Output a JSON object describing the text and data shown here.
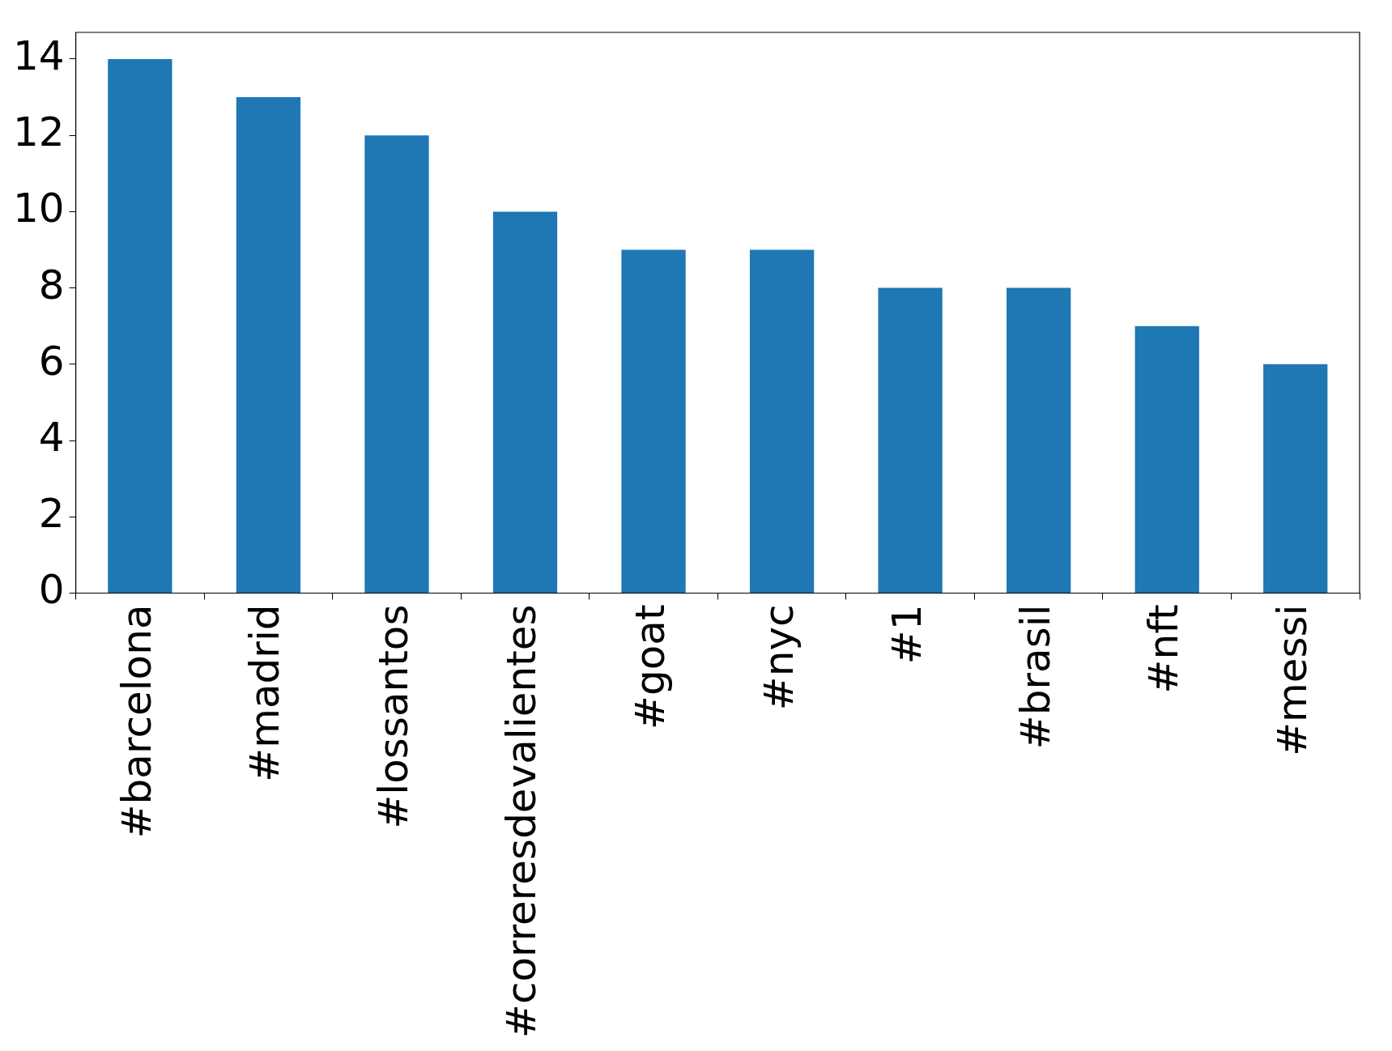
{
  "chart_data": {
    "type": "bar",
    "categories": [
      "#barcelona",
      "#madrid",
      "#lossantos",
      "#correresdevalientes",
      "#goat",
      "#nyc",
      "#1",
      "#brasil",
      "#nft",
      "#messi"
    ],
    "values": [
      14,
      13,
      12,
      10,
      9,
      9,
      8,
      8,
      7,
      6
    ],
    "color": "#1f77b4",
    "ylim": [
      0,
      14.7
    ],
    "yticks": [
      0,
      2,
      4,
      6,
      8,
      10,
      12,
      14
    ],
    "grid": false,
    "legend": false
  }
}
